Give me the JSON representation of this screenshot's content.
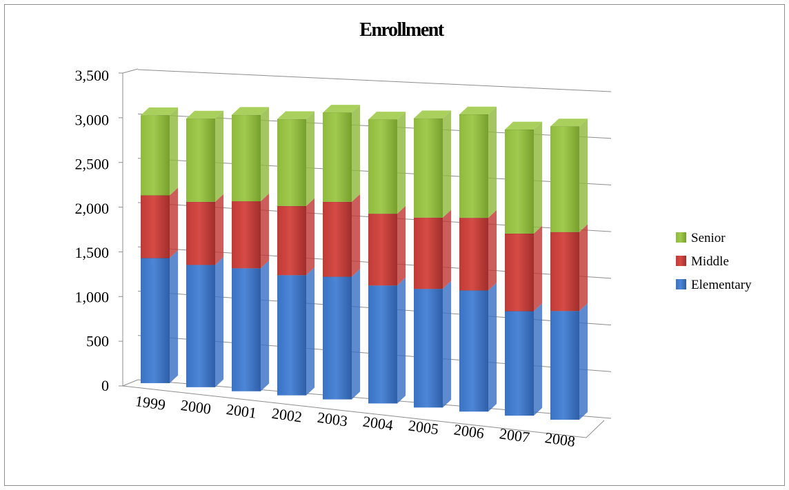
{
  "chart_data": {
    "type": "bar",
    "stacked": true,
    "three_d": true,
    "title": "Enrollment",
    "xlabel": "",
    "ylabel": "",
    "categories": [
      "1999",
      "2000",
      "2001",
      "2002",
      "2003",
      "2004",
      "2005",
      "2006",
      "2007",
      "2008"
    ],
    "ylim": [
      0,
      3500
    ],
    "yticks": [
      0,
      500,
      1000,
      1500,
      2000,
      2500,
      3000,
      3500
    ],
    "ytick_labels": [
      "0",
      "500",
      "1,000",
      "1,500",
      "2,000",
      "2,500",
      "3,000",
      "3,500"
    ],
    "grid": true,
    "legend_position": "right",
    "series": [
      {
        "name": "Elementary",
        "color": "#3a72c4",
        "values": [
          1420,
          1380,
          1380,
          1340,
          1360,
          1300,
          1300,
          1320,
          1130,
          1170
        ]
      },
      {
        "name": "Middle",
        "color": "#c03a36",
        "values": [
          720,
          720,
          760,
          780,
          840,
          800,
          790,
          800,
          850,
          860
        ]
      },
      {
        "name": "Senior",
        "color": "#8fba3e",
        "values": [
          920,
          950,
          980,
          980,
          1000,
          1050,
          1100,
          1140,
          1140,
          1150
        ]
      }
    ],
    "legend_order": [
      "Senior",
      "Middle",
      "Elementary"
    ]
  }
}
